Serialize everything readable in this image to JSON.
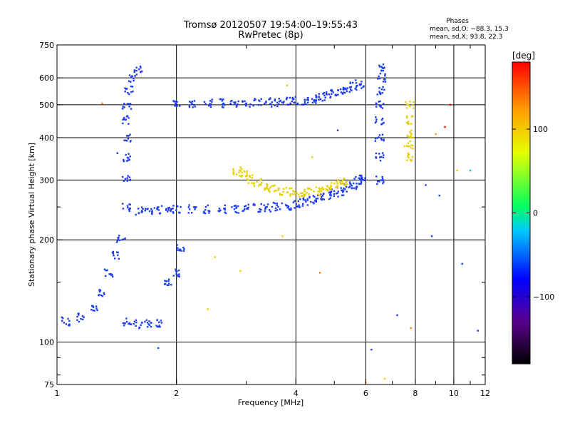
{
  "chart_data": {
    "type": "scatter",
    "title": "Tromsø 20120507 19:54:00–19:55:43",
    "subtitle": "RwPretec (8p)",
    "phases": {
      "heading": "Phases",
      "line_o": "mean, sd,O: −88.3, 15.3",
      "line_x": "mean, sd,X: 93.8, 22.3"
    },
    "xlabel": "Frequency [MHz]",
    "ylabel": "Stationary phase Virtual Height [km]",
    "x_scale": "log",
    "y_scale": "log",
    "xlim": [
      1,
      12
    ],
    "ylim": [
      75,
      750
    ],
    "x_ticks": [
      1,
      2,
      4,
      6,
      8,
      10,
      12
    ],
    "x_tick_labels": [
      "1",
      "2",
      "4",
      "6",
      "8",
      "10",
      "12"
    ],
    "x_minor_ticks": [
      3,
      5,
      7,
      9,
      11
    ],
    "y_ticks": [
      75,
      100,
      200,
      300,
      400,
      500,
      600,
      750
    ],
    "y_tick_labels": [
      "75",
      "100",
      "200",
      "300",
      "400",
      "500",
      "600",
      "750"
    ],
    "y_minor_ticks": [
      80,
      90,
      150,
      250
    ],
    "grid": true,
    "colorbar": {
      "label": "[deg]",
      "min": -180,
      "max": 180,
      "ticks": [
        100,
        0,
        -100
      ],
      "tick_labels": [
        "100",
        "0",
        "−100"
      ],
      "colors": [
        "#000000",
        "#5a008c",
        "#0000ff",
        "#00c8ff",
        "#00ff60",
        "#e6ff00",
        "#ffa000",
        "#ff0000"
      ]
    },
    "series": [
      {
        "trace": "O-mode F2 lower",
        "color": "#1e3cf0",
        "points": [
          [
            1.62,
            243
          ],
          [
            1.7,
            244
          ],
          [
            1.8,
            245
          ],
          [
            1.9,
            245
          ],
          [
            2.0,
            246
          ],
          [
            2.2,
            246
          ],
          [
            2.4,
            246
          ],
          [
            2.6,
            246
          ],
          [
            2.8,
            247
          ],
          [
            3.0,
            247
          ],
          [
            3.2,
            248
          ],
          [
            3.4,
            249
          ],
          [
            3.6,
            250
          ],
          [
            3.8,
            252
          ],
          [
            4.0,
            254
          ],
          [
            4.2,
            258
          ],
          [
            4.4,
            262
          ],
          [
            4.6,
            266
          ],
          [
            4.8,
            270
          ],
          [
            5.0,
            274
          ],
          [
            5.2,
            278
          ],
          [
            5.4,
            284
          ],
          [
            5.6,
            290
          ],
          [
            5.75,
            298
          ],
          [
            5.85,
            305
          ]
        ]
      },
      {
        "trace": "O-mode F2 upper",
        "color": "#1e3cf0",
        "points": [
          [
            2.0,
            500
          ],
          [
            2.2,
            502
          ],
          [
            2.4,
            504
          ],
          [
            2.6,
            505
          ],
          [
            2.8,
            506
          ],
          [
            3.0,
            506
          ],
          [
            3.2,
            507
          ],
          [
            3.4,
            508
          ],
          [
            3.6,
            509
          ],
          [
            3.8,
            510
          ],
          [
            4.0,
            512
          ],
          [
            4.2,
            514
          ],
          [
            4.4,
            518
          ],
          [
            4.6,
            523
          ],
          [
            4.8,
            530
          ],
          [
            5.0,
            538
          ],
          [
            5.2,
            548
          ],
          [
            5.4,
            556
          ],
          [
            5.6,
            565
          ],
          [
            5.8,
            575
          ]
        ]
      },
      {
        "trace": "X-mode F2 lower",
        "color": "#e6d000",
        "points": [
          [
            2.85,
            318
          ],
          [
            2.95,
            310
          ],
          [
            3.05,
            302
          ],
          [
            3.2,
            294
          ],
          [
            3.35,
            288
          ],
          [
            3.5,
            283
          ],
          [
            3.7,
            279
          ],
          [
            3.9,
            276
          ],
          [
            4.1,
            275
          ],
          [
            4.3,
            276
          ],
          [
            4.5,
            278
          ],
          [
            4.7,
            282
          ],
          [
            4.9,
            286
          ],
          [
            5.1,
            292
          ],
          [
            5.3,
            298
          ]
        ]
      },
      {
        "trace": "O-mode F1 column",
        "color": "#1e3cf0",
        "points": [
          [
            1.5,
            250
          ],
          [
            1.5,
            300
          ],
          [
            1.5,
            350
          ],
          [
            1.5,
            400
          ],
          [
            1.5,
            450
          ],
          [
            1.5,
            500
          ],
          [
            1.52,
            550
          ],
          [
            1.55,
            600
          ],
          [
            1.6,
            640
          ]
        ]
      },
      {
        "trace": "O-mode low-frequency cloud",
        "color": "#1e3cf0",
        "points": [
          [
            1.05,
            115
          ],
          [
            1.15,
            118
          ],
          [
            1.25,
            125
          ],
          [
            1.3,
            140
          ],
          [
            1.35,
            160
          ],
          [
            1.4,
            180
          ],
          [
            1.45,
            200
          ],
          [
            1.5,
            115
          ],
          [
            1.6,
            113
          ],
          [
            1.7,
            113
          ],
          [
            1.8,
            114
          ],
          [
            1.9,
            150
          ],
          [
            2.0,
            160
          ],
          [
            2.05,
            190
          ]
        ]
      },
      {
        "trace": "near-vertical trace 6.5 MHz",
        "color": "#1e3cf0",
        "points": [
          [
            6.5,
            300
          ],
          [
            6.5,
            350
          ],
          [
            6.5,
            400
          ],
          [
            6.5,
            450
          ],
          [
            6.5,
            500
          ],
          [
            6.55,
            550
          ],
          [
            6.6,
            600
          ],
          [
            6.65,
            640
          ]
        ]
      },
      {
        "trace": "near-vertical trace 7.7 MHz",
        "color": "#e6d000",
        "points": [
          [
            7.7,
            350
          ],
          [
            7.7,
            380
          ],
          [
            7.72,
            410
          ],
          [
            7.75,
            450
          ],
          [
            7.75,
            500
          ]
        ]
      }
    ],
    "scattered_points": [
      {
        "x": 2.5,
        "y": 178,
        "color": "#e6d000"
      },
      {
        "x": 2.4,
        "y": 125,
        "color": "#e6d000"
      },
      {
        "x": 2.9,
        "y": 162,
        "color": "#e6d000"
      },
      {
        "x": 3.7,
        "y": 205,
        "color": "#e6d000"
      },
      {
        "x": 1.8,
        "y": 96,
        "color": "#1e3cf0"
      },
      {
        "x": 1.42,
        "y": 360,
        "color": "#1e3cf0"
      },
      {
        "x": 6.0,
        "y": 76,
        "color": "#ff8000"
      },
      {
        "x": 6.7,
        "y": 78,
        "color": "#e6d000"
      },
      {
        "x": 9.5,
        "y": 430,
        "color": "#ff0000"
      },
      {
        "x": 9.0,
        "y": 410,
        "color": "#ffa000"
      },
      {
        "x": 10.5,
        "y": 170,
        "color": "#1e3cf0"
      },
      {
        "x": 11.0,
        "y": 320,
        "color": "#00c8ff"
      },
      {
        "x": 10.2,
        "y": 320,
        "color": "#e6d000"
      },
      {
        "x": 8.5,
        "y": 290,
        "color": "#1e3cf0"
      },
      {
        "x": 9.2,
        "y": 270,
        "color": "#1e3cf0"
      },
      {
        "x": 4.6,
        "y": 160,
        "color": "#ff8000"
      },
      {
        "x": 7.2,
        "y": 120,
        "color": "#1e3cf0"
      },
      {
        "x": 5.1,
        "y": 420,
        "color": "#1e3cf0"
      },
      {
        "x": 3.8,
        "y": 570,
        "color": "#e6d000"
      },
      {
        "x": 1.3,
        "y": 505,
        "color": "#ff8000"
      },
      {
        "x": 9.8,
        "y": 500,
        "color": "#ff0000"
      },
      {
        "x": 8.8,
        "y": 205,
        "color": "#1e3cf0"
      },
      {
        "x": 11.5,
        "y": 108,
        "color": "#1e3cf0"
      },
      {
        "x": 7.8,
        "y": 110,
        "color": "#ff8000"
      },
      {
        "x": 6.2,
        "y": 95,
        "color": "#1e3cf0"
      },
      {
        "x": 4.4,
        "y": 350,
        "color": "#e6d000"
      }
    ]
  }
}
